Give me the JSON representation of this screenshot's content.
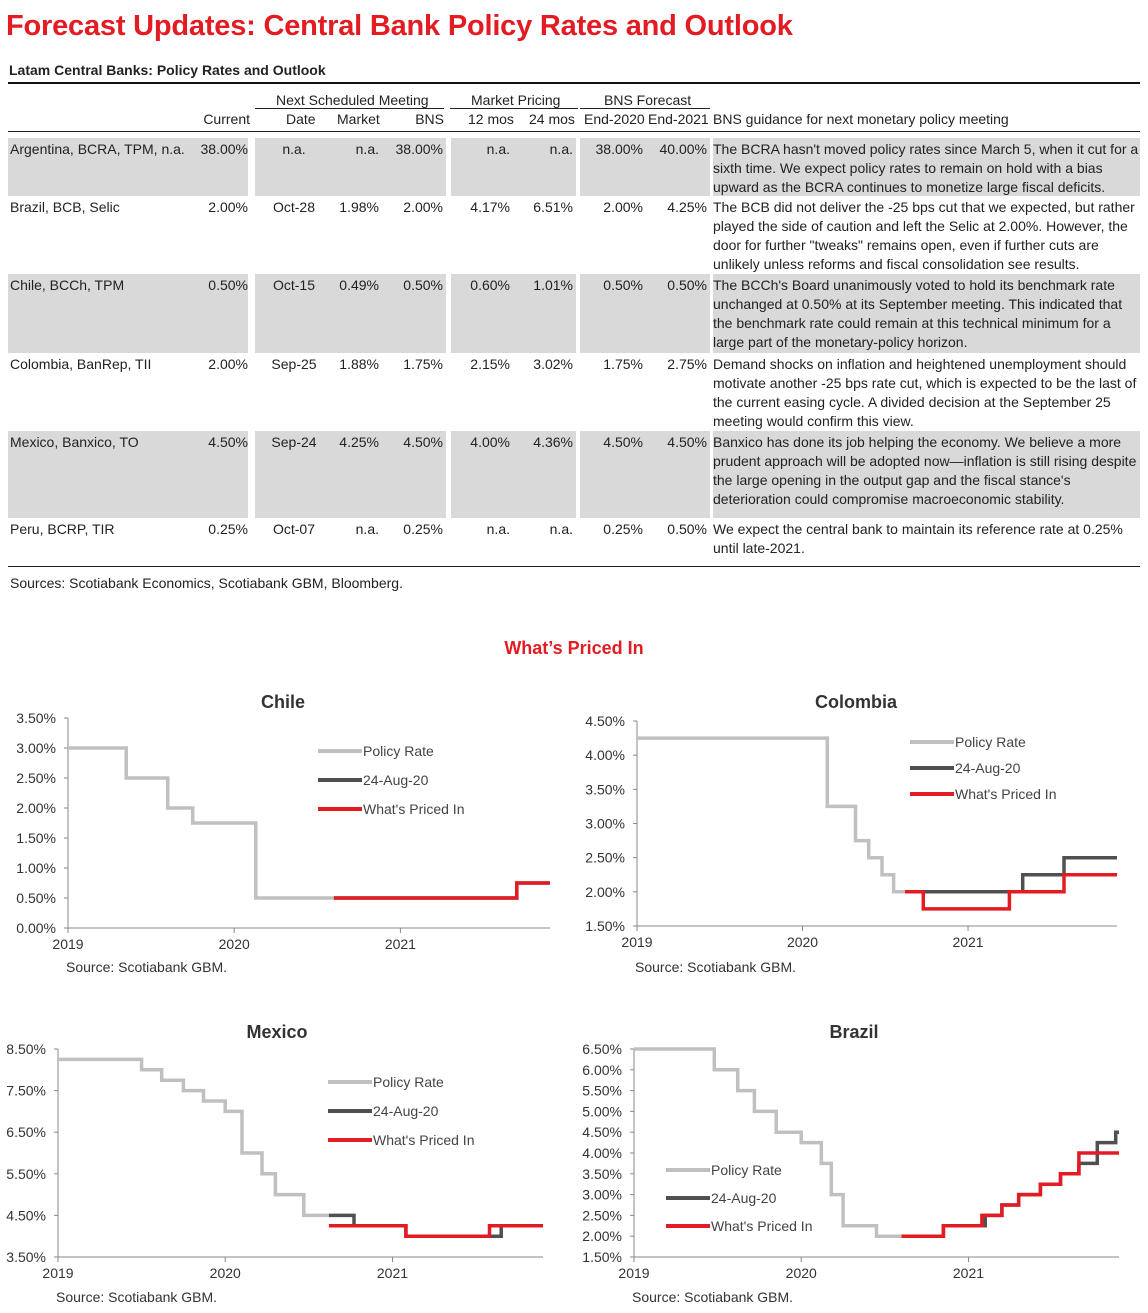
{
  "page": {
    "title": "Forecast Updates: Central Bank Policy Rates and Outlook",
    "table_title": "Latam Central Banks: Policy Rates and Outlook",
    "sources": "Sources: Scotiabank Economics, Scotiabank GBM, Bloomberg.",
    "section_title": "What’s Priced In"
  },
  "table": {
    "groups": {
      "next_meeting": "Next Scheduled Meeting",
      "market_pricing": "Market Pricing",
      "bns_forecast": "BNS Forecast"
    },
    "headers": {
      "current": "Current",
      "date": "Date",
      "market": "Market",
      "bns": "BNS",
      "m12": "12 mos",
      "m24": "24 mos",
      "end2020": "End-2020",
      "end2021": "End-2021",
      "guidance": "BNS guidance for next monetary policy meeting"
    },
    "rows": [
      {
        "bank": "Argentina, BCRA, TPM, n.a.",
        "current": "38.00%",
        "date": "n.a.",
        "market": "n.a.",
        "bns": "38.00%",
        "m12": "n.a.",
        "m24": "n.a.",
        "end2020": "38.00%",
        "end2021": "40.00%",
        "guidance": "The BCRA hasn't moved policy rates since March 5, when it cut for a sixth time. We expect policy rates to remain on hold with a bias upward as the BCRA continues to monetize large fiscal deficits."
      },
      {
        "bank": "Brazil, BCB, Selic",
        "current": "2.00%",
        "date": "Oct-28",
        "market": "1.98%",
        "bns": "2.00%",
        "m12": "4.17%",
        "m24": "6.51%",
        "end2020": "2.00%",
        "end2021": "4.25%",
        "guidance": "The BCB did not deliver the -25 bps cut that we expected, but rather played the side of caution and left the Selic at 2.00%. However, the door for further \"tweaks\" remains open, even if further cuts are unlikely unless reforms and fiscal consolidation see results."
      },
      {
        "bank": "Chile, BCCh, TPM",
        "current": "0.50%",
        "date": "Oct-15",
        "market": "0.49%",
        "bns": "0.50%",
        "m12": "0.60%",
        "m24": "1.01%",
        "end2020": "0.50%",
        "end2021": "0.50%",
        "guidance": "The BCCh's Board unanimously voted to hold its benchmark rate unchanged at 0.50% at its September meeting. This indicated that the benchmark rate could remain at this technical minimum for a large part of the monetary-policy horizon."
      },
      {
        "bank": "Colombia, BanRep, TII",
        "current": "2.00%",
        "date": "Sep-25",
        "market": "1.88%",
        "bns": "1.75%",
        "m12": "2.15%",
        "m24": "3.02%",
        "end2020": "1.75%",
        "end2021": "2.75%",
        "guidance": "Demand shocks on inflation and heightened unemployment should motivate another -25 bps rate cut, which is expected to be the last of the current easing cycle. A divided decision at the September 25 meeting would confirm this view."
      },
      {
        "bank": "Mexico, Banxico, TO",
        "current": "4.50%",
        "date": "Sep-24",
        "market": "4.25%",
        "bns": "4.50%",
        "m12": "4.00%",
        "m24": "4.36%",
        "end2020": "4.50%",
        "end2021": "4.50%",
        "guidance": "Banxico has done its job helping the economy. We believe a more prudent approach will be adopted now—inflation is still rising despite the large opening in the output gap and the fiscal stance's deterioration could compromise macroeconomic stability."
      },
      {
        "bank": "Peru, BCRP, TIR",
        "current": "0.25%",
        "date": "Oct-07",
        "market": "n.a.",
        "bns": "0.25%",
        "m12": "n.a.",
        "m24": "n.a.",
        "end2020": "0.25%",
        "end2021": "0.50%",
        "guidance": "We expect the central bank to maintain its reference rate at 0.25% until late-2021."
      }
    ]
  },
  "colors": {
    "policy_rate": "#c0c0c0",
    "aug24": "#505050",
    "priced_in": "#e31b23"
  },
  "chart_data": [
    {
      "type": "line",
      "title": "Chile",
      "source": "Source: Scotiabank GBM.",
      "xlim": [
        2019,
        2021.9
      ],
      "xticks": [
        2019,
        2020,
        2021
      ],
      "ylim": [
        0,
        3.5
      ],
      "yticks": [
        0,
        0.5,
        1.0,
        1.5,
        2.0,
        2.5,
        3.0,
        3.5
      ],
      "ytick_labels": [
        "0.00%",
        "0.50%",
        "1.00%",
        "1.50%",
        "2.00%",
        "2.50%",
        "3.00%",
        "3.50%"
      ],
      "legend": [
        "Policy Rate",
        "24-Aug-20",
        "What's Priced In"
      ],
      "series": [
        {
          "name": "Policy Rate",
          "key": "policy_rate",
          "x": [
            2019,
            2019.35,
            2019.35,
            2019.6,
            2019.6,
            2019.75,
            2019.75,
            2020.13,
            2020.13,
            2020.6
          ],
          "y": [
            3.0,
            3.0,
            2.5,
            2.5,
            2.0,
            2.0,
            1.75,
            1.75,
            0.5,
            0.5
          ]
        },
        {
          "name": "24-Aug-20",
          "key": "aug24",
          "x": [
            2020.6,
            2021.7,
            2021.7,
            2021.9
          ],
          "y": [
            0.5,
            0.5,
            0.75,
            0.75
          ]
        },
        {
          "name": "What's Priced In",
          "key": "priced_in",
          "x": [
            2020.6,
            2021.7,
            2021.7,
            2021.9
          ],
          "y": [
            0.5,
            0.5,
            0.75,
            0.75
          ]
        }
      ]
    },
    {
      "type": "line",
      "title": "Colombia",
      "source": "Source: Scotiabank GBM.",
      "xlim": [
        2019,
        2021.9
      ],
      "xticks": [
        2019,
        2020,
        2021
      ],
      "ylim": [
        1.5,
        4.5
      ],
      "yticks": [
        1.5,
        2.0,
        2.5,
        3.0,
        3.5,
        4.0,
        4.5
      ],
      "ytick_labels": [
        "1.50%",
        "2.00%",
        "2.50%",
        "3.00%",
        "3.50%",
        "4.00%",
        "4.50%"
      ],
      "legend": [
        "Policy Rate",
        "24-Aug-20",
        "What's Priced In"
      ],
      "series": [
        {
          "name": "Policy Rate",
          "key": "policy_rate",
          "x": [
            2019,
            2020.15,
            2020.15,
            2020.32,
            2020.32,
            2020.4,
            2020.4,
            2020.48,
            2020.48,
            2020.55,
            2020.55,
            2020.62
          ],
          "y": [
            4.25,
            4.25,
            3.25,
            3.25,
            2.75,
            2.75,
            2.5,
            2.5,
            2.25,
            2.25,
            2.0,
            2.0
          ]
        },
        {
          "name": "24-Aug-20",
          "key": "aug24",
          "x": [
            2020.62,
            2021.33,
            2021.33,
            2021.58,
            2021.58,
            2021.9
          ],
          "y": [
            2.0,
            2.0,
            2.25,
            2.25,
            2.5,
            2.5
          ]
        },
        {
          "name": "What's Priced In",
          "key": "priced_in",
          "x": [
            2020.62,
            2020.73,
            2020.73,
            2021.25,
            2021.25,
            2021.58,
            2021.58,
            2021.9
          ],
          "y": [
            2.0,
            2.0,
            1.75,
            1.75,
            2.0,
            2.0,
            2.25,
            2.25
          ]
        }
      ]
    },
    {
      "type": "line",
      "title": "Mexico",
      "source": "Source: Scotiabank GBM.",
      "xlim": [
        2019,
        2021.9
      ],
      "xticks": [
        2019,
        2020,
        2021
      ],
      "ylim": [
        3.5,
        8.5
      ],
      "yticks": [
        3.5,
        4.5,
        5.5,
        6.5,
        7.5,
        8.5
      ],
      "ytick_labels": [
        "3.50%",
        "4.50%",
        "5.50%",
        "6.50%",
        "7.50%",
        "8.50%"
      ],
      "legend": [
        "Policy Rate",
        "24-Aug-20",
        "What's Priced In"
      ],
      "series": [
        {
          "name": "Policy Rate",
          "key": "policy_rate",
          "x": [
            2019,
            2019.5,
            2019.5,
            2019.62,
            2019.62,
            2019.75,
            2019.75,
            2019.87,
            2019.87,
            2020.0,
            2020.0,
            2020.1,
            2020.1,
            2020.22,
            2020.22,
            2020.3,
            2020.3,
            2020.47,
            2020.47,
            2020.62
          ],
          "y": [
            8.25,
            8.25,
            8.0,
            8.0,
            7.75,
            7.75,
            7.5,
            7.5,
            7.25,
            7.25,
            7.0,
            7.0,
            6.0,
            6.0,
            5.5,
            5.5,
            5.0,
            5.0,
            4.5,
            4.5
          ]
        },
        {
          "name": "24-Aug-20",
          "key": "aug24",
          "x": [
            2020.62,
            2020.77,
            2020.77,
            2021.08,
            2021.08,
            2021.58,
            2021.58,
            2021.65,
            2021.65,
            2021.9
          ],
          "y": [
            4.5,
            4.5,
            4.25,
            4.25,
            4.0,
            4.0,
            4.0,
            4.0,
            4.25,
            4.25
          ]
        },
        {
          "name": "What's Priced In",
          "key": "priced_in",
          "x": [
            2020.62,
            2021.08,
            2021.08,
            2021.58,
            2021.58,
            2021.9
          ],
          "y": [
            4.25,
            4.25,
            4.0,
            4.0,
            4.25,
            4.25
          ]
        }
      ]
    },
    {
      "type": "line",
      "title": "Brazil",
      "source": "Source: Scotiabank GBM.",
      "xlim": [
        2019,
        2021.9
      ],
      "xticks": [
        2019,
        2020,
        2021
      ],
      "ylim": [
        1.5,
        6.5
      ],
      "yticks": [
        1.5,
        2.0,
        2.5,
        3.0,
        3.5,
        4.0,
        4.5,
        5.0,
        5.5,
        6.0,
        6.5
      ],
      "ytick_labels": [
        "1.50%",
        "2.00%",
        "2.50%",
        "3.00%",
        "3.50%",
        "4.00%",
        "4.50%",
        "5.00%",
        "5.50%",
        "6.00%",
        "6.50%"
      ],
      "legend": [
        "Policy Rate",
        "24-Aug-20",
        "What's Priced In"
      ],
      "series": [
        {
          "name": "Policy Rate",
          "key": "policy_rate",
          "x": [
            2019,
            2019.48,
            2019.48,
            2019.62,
            2019.62,
            2019.72,
            2019.72,
            2019.85,
            2019.85,
            2020.0,
            2020.0,
            2020.12,
            2020.12,
            2020.18,
            2020.18,
            2020.25,
            2020.25,
            2020.45,
            2020.45,
            2020.6
          ],
          "y": [
            6.5,
            6.5,
            6.0,
            6.0,
            5.5,
            5.5,
            5.0,
            5.0,
            4.5,
            4.5,
            4.25,
            4.25,
            3.75,
            3.75,
            3.0,
            3.0,
            2.25,
            2.25,
            2.0,
            2.0
          ]
        },
        {
          "name": "24-Aug-20",
          "key": "aug24",
          "x": [
            2020.6,
            2020.85,
            2020.85,
            2021.1,
            2021.1,
            2021.2,
            2021.2,
            2021.3,
            2021.3,
            2021.43,
            2021.43,
            2021.55,
            2021.55,
            2021.66,
            2021.66,
            2021.77,
            2021.77,
            2021.88,
            2021.88,
            2021.9
          ],
          "y": [
            2.0,
            2.0,
            2.25,
            2.25,
            2.5,
            2.5,
            2.75,
            2.75,
            3.0,
            3.0,
            3.25,
            3.25,
            3.5,
            3.5,
            3.75,
            3.75,
            4.25,
            4.25,
            4.5,
            4.5
          ]
        },
        {
          "name": "What's Priced In",
          "key": "priced_in",
          "x": [
            2020.6,
            2020.85,
            2020.85,
            2021.08,
            2021.08,
            2021.2,
            2021.2,
            2021.3,
            2021.3,
            2021.43,
            2021.43,
            2021.55,
            2021.55,
            2021.66,
            2021.66,
            2021.77,
            2021.77,
            2021.88,
            2021.88,
            2021.9
          ],
          "y": [
            2.0,
            2.0,
            2.25,
            2.25,
            2.5,
            2.5,
            2.75,
            2.75,
            3.0,
            3.0,
            3.25,
            3.25,
            3.5,
            3.5,
            4.0,
            4.0,
            4.0,
            4.0,
            4.0,
            4.0
          ]
        }
      ]
    }
  ]
}
